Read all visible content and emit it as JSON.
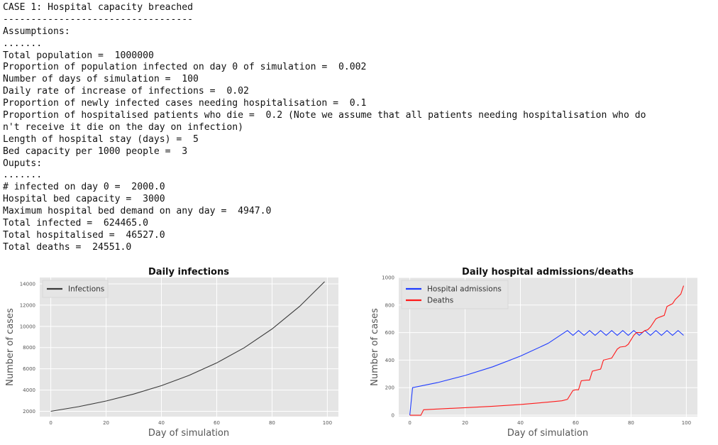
{
  "console_lines": [
    "CASE 1: Hospital capacity breached",
    "----------------------------------",
    "Assumptions:",
    ".......",
    "Total population =  1000000",
    "Proportion of population infected on day 0 of simulation =  0.002",
    "Number of days of simulation =  100",
    "Daily rate of increase of infections =  0.02",
    "Proportion of newly infected cases needing hospitalisation =  0.1",
    "Proportion of hospitalised patients who die =  0.2 (Note we assume that all patients needing hospitalisation who do",
    "n't receive it die on the day on infection)",
    "Length of hospital stay (days) =  5",
    "Bed capacity per 1000 people =  3",
    "Ouputs:",
    ".......",
    "# infected on day 0 =  2000.0",
    "Hospital bed capacity =  3000",
    "Maximum hospital bed demand on any day =  4947.0",
    "Total infected =  624465.0",
    "Total hospitalised =  46527.0",
    "Total deaths =  24551.0"
  ],
  "chart_data": [
    {
      "type": "line",
      "title": "Daily infections",
      "xlabel": "Day of simulation",
      "ylabel": "Number of cases",
      "xlim": [
        -4,
        104
      ],
      "ylim": [
        1500,
        14600
      ],
      "xticks": [
        0,
        20,
        40,
        60,
        80,
        100
      ],
      "xtick_labels": [
        "0",
        "20",
        "40",
        "60",
        "80",
        "100"
      ],
      "yticks": [
        2000,
        4000,
        6000,
        8000,
        10000,
        12000,
        14000
      ],
      "ytick_labels": [
        "2000",
        "4000",
        "6000",
        "8000",
        "10000",
        "12000",
        "14000"
      ],
      "grid": true,
      "background": "#e5e5e5",
      "legend_position": "top-left",
      "series": [
        {
          "name": "Infections",
          "color": "#3a3a3a",
          "x": [
            0,
            10,
            20,
            30,
            40,
            50,
            60,
            70,
            80,
            90,
            99
          ],
          "y": [
            2000,
            2438,
            2972,
            3623,
            4416,
            5383,
            6562,
            7999,
            9751,
            11886,
            14205
          ]
        }
      ]
    },
    {
      "type": "line",
      "title": "Daily hospital admissions/deaths",
      "xlabel": "Day of simulation",
      "ylabel": "Number of cases",
      "xlim": [
        -4,
        104
      ],
      "ylim": [
        -10,
        1000
      ],
      "xticks": [
        0,
        20,
        40,
        60,
        80,
        100
      ],
      "xtick_labels": [
        "0",
        "20",
        "40",
        "60",
        "80",
        "100"
      ],
      "yticks": [
        0,
        200,
        400,
        600,
        800,
        1000
      ],
      "ytick_labels": [
        "0",
        "200",
        "400",
        "600",
        "800",
        "1000"
      ],
      "grid": true,
      "background": "#e5e5e5",
      "legend_position": "top-left",
      "series": [
        {
          "name": "Hospital admissions",
          "color": "#1f3cff",
          "x": [
            0,
            1,
            10,
            20,
            30,
            40,
            50,
            57,
            59,
            61,
            63,
            65,
            67,
            69,
            71,
            73,
            75,
            77,
            79,
            81,
            83,
            85,
            87,
            89,
            91,
            93,
            95,
            97,
            99
          ],
          "y": [
            0,
            200,
            237,
            289,
            352,
            429,
            522,
            615,
            580,
            615,
            580,
            615,
            580,
            615,
            580,
            615,
            580,
            615,
            580,
            615,
            580,
            615,
            580,
            615,
            580,
            615,
            580,
            615,
            580
          ]
        },
        {
          "name": "Deaths",
          "color": "#ff1a1a",
          "x": [
            0,
            4,
            5,
            10,
            20,
            30,
            40,
            50,
            55,
            57,
            59,
            60,
            61,
            62,
            64,
            65,
            66,
            68,
            69,
            70,
            72,
            73,
            75,
            76,
            78,
            79,
            81,
            82,
            84,
            85,
            86,
            87,
            89,
            90,
            92,
            93,
            95,
            96,
            98,
            99
          ],
          "y": [
            0,
            0,
            40,
            45,
            55,
            65,
            78,
            95,
            105,
            115,
            180,
            185,
            185,
            250,
            255,
            255,
            320,
            330,
            335,
            400,
            410,
            415,
            480,
            495,
            500,
            515,
            580,
            600,
            600,
            615,
            620,
            640,
            700,
            710,
            725,
            790,
            810,
            840,
            880,
            940
          ]
        }
      ]
    }
  ]
}
